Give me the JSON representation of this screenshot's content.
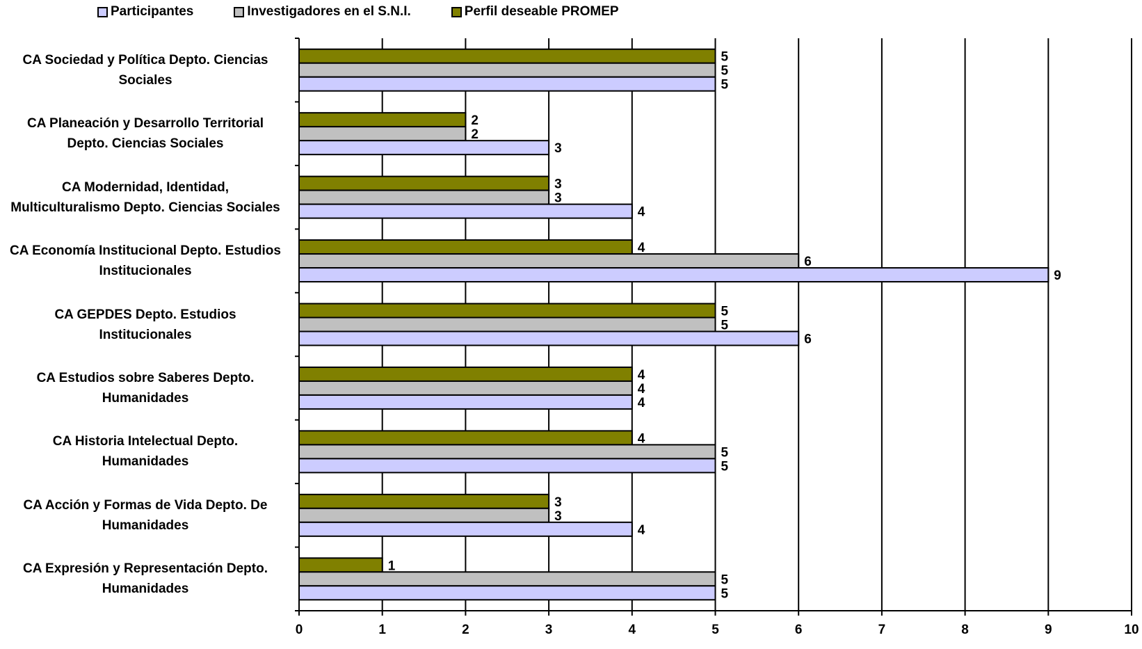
{
  "chart_data": {
    "type": "bar",
    "orientation": "horizontal",
    "categories": [
      "CA Sociedad y Política Depto. Ciencias Sociales",
      "CA Planeación y Desarrollo Territorial Depto. Ciencias Sociales",
      "CA Modernidad, Identidad, Multiculturalismo Depto. Ciencias Sociales",
      "CA Economía Institucional Depto. Estudios Institucionales",
      "CA GEPDES Depto. Estudios Institucionales",
      "CA Estudios sobre Saberes Depto. Humanidades",
      "CA Historia Intelectual Depto. Humanidades",
      "CA Acción y Formas de Vida Depto. De Humanidades",
      "CA Expresión y Representación Depto. Humanidades"
    ],
    "category_lines": [
      [
        "CA Sociedad y Política Depto. Ciencias",
        "Sociales"
      ],
      [
        "CA Planeación y Desarrollo Territorial",
        "Depto. Ciencias Sociales"
      ],
      [
        "CA Modernidad, Identidad,",
        "Multiculturalismo Depto. Ciencias Sociales"
      ],
      [
        "CA Economía Institucional Depto. Estudios",
        "Institucionales"
      ],
      [
        "CA GEPDES Depto. Estudios",
        "Institucionales"
      ],
      [
        "CA Estudios sobre Saberes Depto.",
        "Humanidades"
      ],
      [
        "CA Historia Intelectual Depto.",
        "Humanidades"
      ],
      [
        "CA Acción y Formas de Vida Depto. De",
        "Humanidades"
      ],
      [
        "CA Expresión y Representación Depto.",
        "Humanidades"
      ]
    ],
    "series": [
      {
        "name": "Participantes",
        "color": "#ccccff",
        "values": [
          5,
          3,
          4,
          9,
          6,
          4,
          5,
          4,
          5
        ]
      },
      {
        "name": "Investigadores en el S.N.I.",
        "color": "#c0c0c0",
        "values": [
          5,
          2,
          3,
          6,
          5,
          4,
          5,
          3,
          5
        ]
      },
      {
        "name": "Perfil deseable PROMEP",
        "color": "#808000",
        "values": [
          5,
          2,
          3,
          4,
          5,
          4,
          4,
          3,
          1
        ]
      }
    ],
    "xlim": [
      0,
      10
    ],
    "xticks": [
      "0",
      "1",
      "2",
      "3",
      "4",
      "5",
      "6",
      "7",
      "8",
      "9",
      "10"
    ],
    "grid": "vertical",
    "legend_position": "top",
    "data_labels": true
  }
}
